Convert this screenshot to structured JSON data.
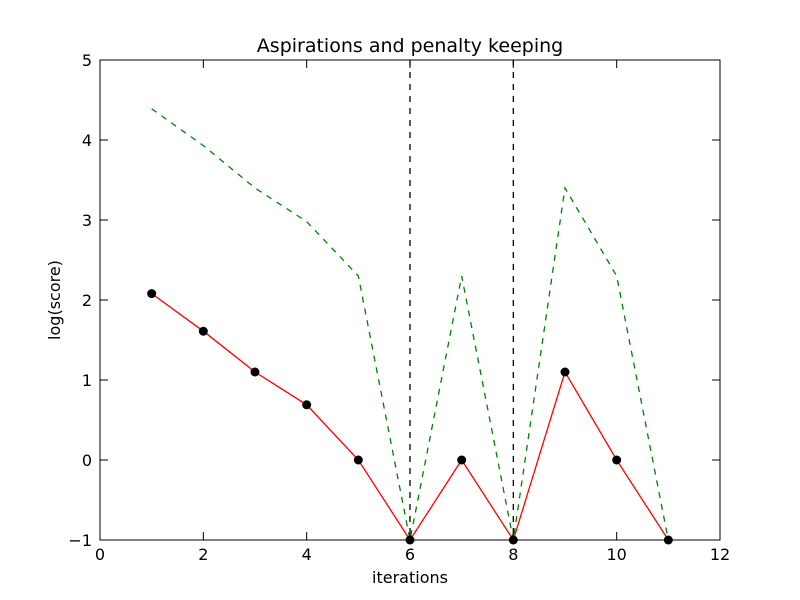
{
  "chart_data": {
    "type": "line",
    "title": "Aspirations and penalty keeping",
    "xlabel": "iterations",
    "ylabel": "log(score)",
    "xlim": [
      0,
      12
    ],
    "ylim": [
      -1,
      5
    ],
    "xticks": [
      "0",
      "2",
      "4",
      "6",
      "8",
      "10",
      "12"
    ],
    "yticks": [
      "−1",
      "0",
      "1",
      "2",
      "3",
      "4",
      "5"
    ],
    "grid": false,
    "series": [
      {
        "style": "solid-with-markers",
        "color": "#ff0000",
        "marker_color": "#000000",
        "x": [
          1,
          2,
          3,
          4,
          5,
          6,
          7,
          8,
          9,
          10,
          11
        ],
        "y": [
          2.08,
          1.61,
          1.1,
          0.69,
          0,
          -1,
          0,
          -1,
          1.1,
          0,
          -1
        ]
      },
      {
        "style": "dashed",
        "color": "#008000",
        "x": [
          1,
          2,
          3,
          4,
          5,
          6,
          7,
          8,
          9,
          10,
          11
        ],
        "y": [
          4.39,
          3.93,
          3.4,
          2.98,
          2.3,
          -1,
          2.3,
          -1,
          3.4,
          2.3,
          -1
        ]
      }
    ],
    "vertical_lines": [
      {
        "x": 6,
        "style": "dashed",
        "color": "#000000"
      },
      {
        "x": 8,
        "style": "dashed",
        "color": "#000000"
      }
    ]
  }
}
